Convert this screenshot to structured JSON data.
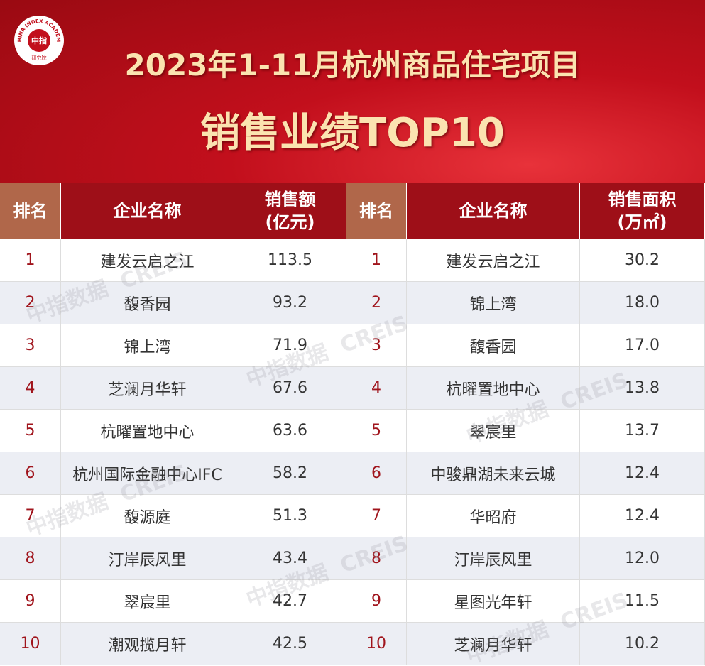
{
  "header": {
    "logo": {
      "center": "中指",
      "ring": "CHINA INDEX ACADEMY",
      "bottom": "研究院"
    },
    "title": "2023年1-11月杭州商品住宅项目",
    "subtitle": "销售业绩TOP10"
  },
  "watermark": "中指数据  CREIS",
  "tables": [
    {
      "headers": {
        "rank": "排名",
        "name": "企业名称",
        "value": [
          "销售额",
          "(亿元)"
        ]
      },
      "rows": [
        [
          "1",
          "建发云启之江",
          "113.5"
        ],
        [
          "2",
          "馥香园",
          "93.2"
        ],
        [
          "3",
          "锦上湾",
          "71.9"
        ],
        [
          "4",
          "芝澜月华轩",
          "67.6"
        ],
        [
          "5",
          "杭曜置地中心",
          "63.6"
        ],
        [
          "6",
          "杭州国际金融中心IFC",
          "58.2"
        ],
        [
          "7",
          "馥源庭",
          "51.3"
        ],
        [
          "8",
          "汀岸辰风里",
          "43.4"
        ],
        [
          "9",
          "翠宸里",
          "42.7"
        ],
        [
          "10",
          "潮观揽月轩",
          "42.5"
        ]
      ]
    },
    {
      "headers": {
        "rank": "排名",
        "name": "企业名称",
        "value": [
          "销售面积",
          "(万㎡)"
        ]
      },
      "rows": [
        [
          "1",
          "建发云启之江",
          "30.2"
        ],
        [
          "2",
          "锦上湾",
          "18.0"
        ],
        [
          "3",
          "馥香园",
          "17.0"
        ],
        [
          "4",
          "杭曜置地中心",
          "13.8"
        ],
        [
          "5",
          "翠宸里",
          "13.7"
        ],
        [
          "6",
          "中骏鼎湖未来云城",
          "12.4"
        ],
        [
          "7",
          "华昭府",
          "12.4"
        ],
        [
          "8",
          "汀岸辰风里",
          "12.0"
        ],
        [
          "9",
          "星图光年轩",
          "11.5"
        ],
        [
          "10",
          "芝澜月华轩",
          "10.2"
        ]
      ]
    }
  ]
}
